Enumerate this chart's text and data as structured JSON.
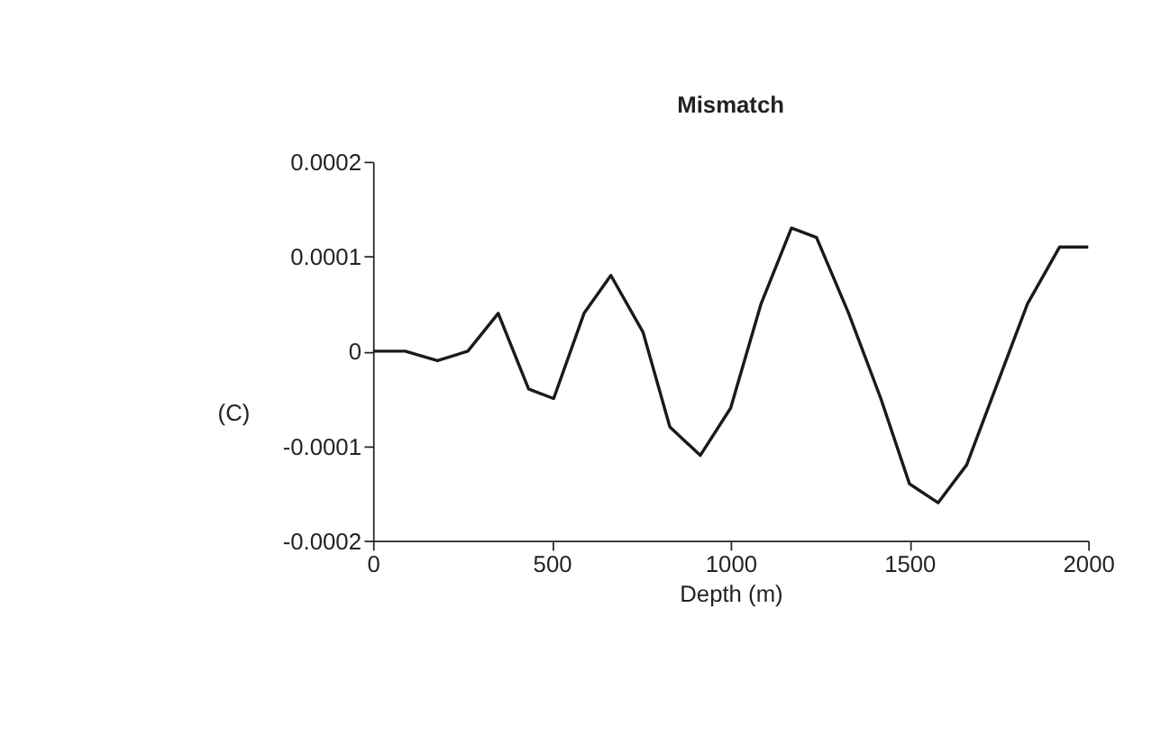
{
  "chart_data": {
    "type": "line",
    "title": "Mismatch",
    "xlabel": "Depth (m)",
    "ylabel": "(C)",
    "x": [
      0,
      90,
      180,
      265,
      350,
      435,
      505,
      590,
      665,
      755,
      830,
      915,
      1000,
      1085,
      1170,
      1240,
      1330,
      1420,
      1500,
      1580,
      1660,
      1750,
      1830,
      1920,
      2000
    ],
    "series": [
      {
        "color": "#1a1a1a",
        "values": [
          0,
          0,
          -1e-05,
          0,
          4e-05,
          -4e-05,
          -5e-05,
          4e-05,
          8e-05,
          2e-05,
          -8e-05,
          -0.00011,
          -6e-05,
          5e-05,
          0.00013,
          0.00012,
          4e-05,
          -5e-05,
          -0.00014,
          -0.00016,
          -0.00012,
          -3e-05,
          5e-05,
          0.00011,
          0.00011
        ]
      }
    ],
    "xlim": [
      0,
      2000
    ],
    "xticks": [
      0,
      500,
      1000,
      1500,
      2000
    ],
    "ylim": [
      -0.0002,
      0.0002
    ],
    "yticks": [
      -0.0002,
      -0.0001,
      0,
      0.0001,
      0.0002
    ],
    "grid": false,
    "legend": false,
    "marker": "none",
    "line_style": "solid"
  }
}
